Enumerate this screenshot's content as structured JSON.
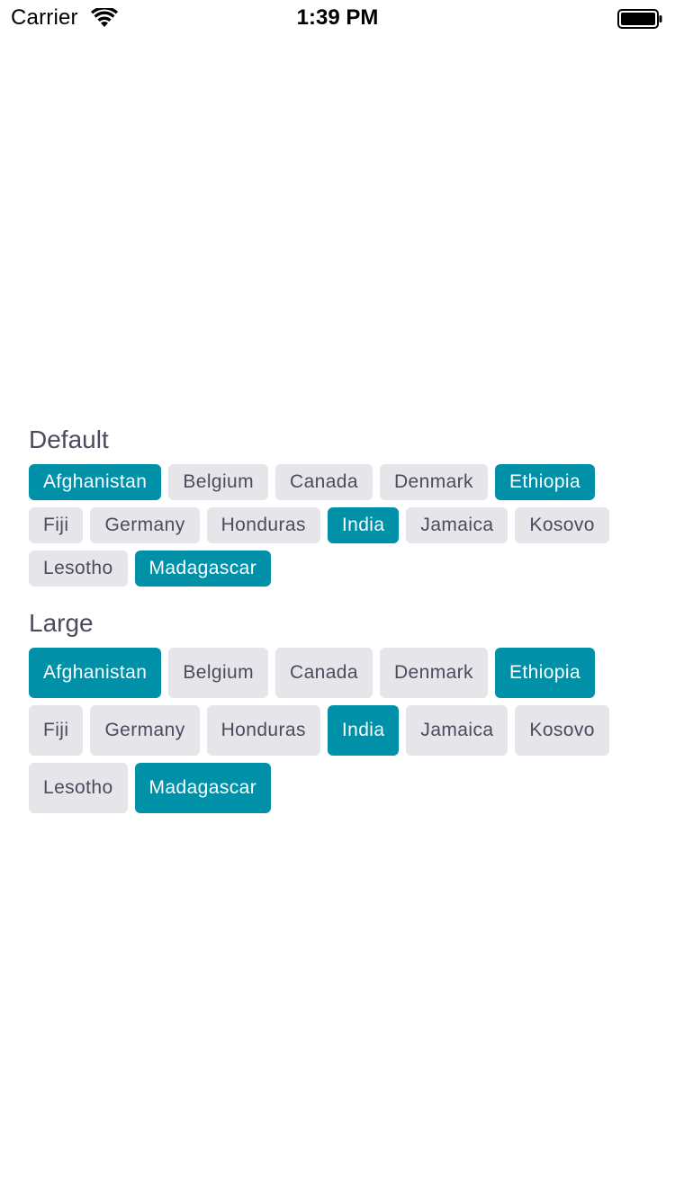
{
  "status_bar": {
    "carrier": "Carrier",
    "time": "1:39 PM",
    "wifi_icon": "wifi-icon",
    "battery_icon": "battery-icon"
  },
  "colors": {
    "selected_bg": "#0090a8",
    "selected_text": "#ffffff",
    "unselected_bg": "#e5e5ea",
    "unselected_text": "#4a4c5e"
  },
  "sections": [
    {
      "title": "Default",
      "chips": [
        {
          "label": "Afghanistan",
          "selected": true
        },
        {
          "label": "Belgium",
          "selected": false
        },
        {
          "label": "Canada",
          "selected": false
        },
        {
          "label": "Denmark",
          "selected": false
        },
        {
          "label": "Ethiopia",
          "selected": true
        },
        {
          "label": "Fiji",
          "selected": false
        },
        {
          "label": "Germany",
          "selected": false
        },
        {
          "label": "Honduras",
          "selected": false
        },
        {
          "label": "India",
          "selected": true
        },
        {
          "label": "Jamaica",
          "selected": false
        },
        {
          "label": "Kosovo",
          "selected": false
        },
        {
          "label": "Lesotho",
          "selected": false
        },
        {
          "label": "Madagascar",
          "selected": true
        }
      ]
    },
    {
      "title": "Large",
      "chips": [
        {
          "label": "Afghanistan",
          "selected": true
        },
        {
          "label": "Belgium",
          "selected": false
        },
        {
          "label": "Canada",
          "selected": false
        },
        {
          "label": "Denmark",
          "selected": false
        },
        {
          "label": "Ethiopia",
          "selected": true
        },
        {
          "label": "Fiji",
          "selected": false
        },
        {
          "label": "Germany",
          "selected": false
        },
        {
          "label": "Honduras",
          "selected": false
        },
        {
          "label": "India",
          "selected": true
        },
        {
          "label": "Jamaica",
          "selected": false
        },
        {
          "label": "Kosovo",
          "selected": false
        },
        {
          "label": "Lesotho",
          "selected": false
        },
        {
          "label": "Madagascar",
          "selected": true
        }
      ]
    }
  ]
}
